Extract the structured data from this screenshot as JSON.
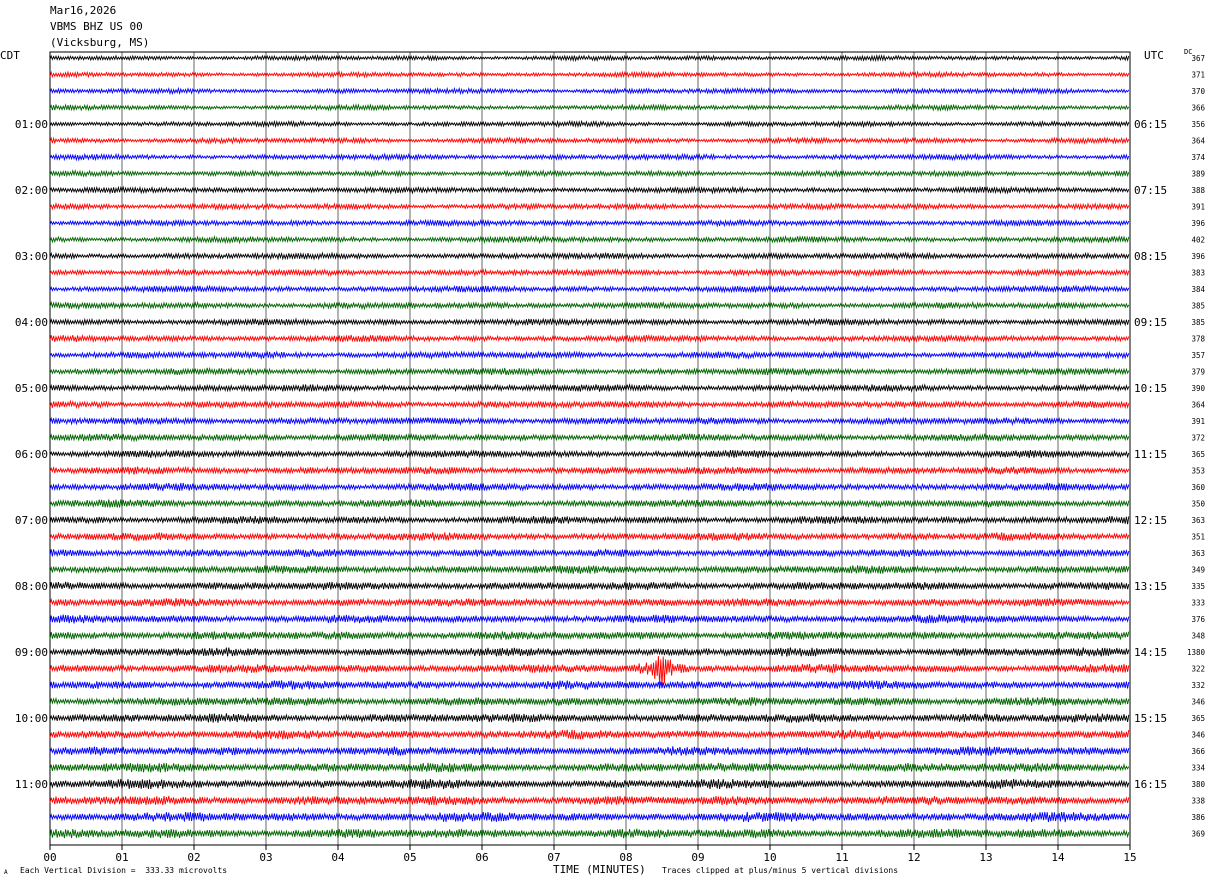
{
  "header": {
    "date": "Mar16,2026",
    "station": "VBMS BHZ US 00",
    "location": "(Vicksburg, MS)"
  },
  "left_tz": "CDT",
  "right_tz": "UTC",
  "dc_label": "DC",
  "footer": {
    "left": "Each Vertical Division =  333.33 microvolts",
    "right": "Traces clipped at plus/minus 5 vertical divisions",
    "corner": "A"
  },
  "chart_data": {
    "type": "line",
    "xlabel": "TIME (MINUTES)",
    "xlim": [
      0,
      15
    ],
    "x_ticks": [
      "00",
      "01",
      "02",
      "03",
      "04",
      "05",
      "06",
      "07",
      "08",
      "09",
      "10",
      "11",
      "12",
      "13",
      "14",
      "15"
    ],
    "trace_count": 48,
    "trace_colors": [
      "#000000",
      "#ff0000",
      "#0000ff",
      "#006400"
    ],
    "left_hour_labels": [
      "01:00",
      "02:00",
      "03:00",
      "04:00",
      "05:00",
      "06:00",
      "07:00",
      "08:00",
      "09:00",
      "10:00",
      "11:00"
    ],
    "right_hour_labels": [
      "06:15",
      "07:15",
      "08:15",
      "09:15",
      "10:15",
      "11:15",
      "12:15",
      "13:15",
      "14:15",
      "15:15",
      "16:15"
    ],
    "dc_values": [
      "367",
      "371",
      "370",
      "366",
      "356",
      "364",
      "374",
      "389",
      "388",
      "391",
      "396",
      "402",
      "396",
      "383",
      "384",
      "385",
      "385",
      "378",
      "357",
      "379",
      "390",
      "364",
      "391",
      "372",
      "365",
      "353",
      "360",
      "350",
      "363",
      "351",
      "363",
      "349",
      "335",
      "333",
      "376",
      "348",
      "1380",
      "322",
      "332",
      "346",
      "365",
      "346",
      "366",
      "334",
      "380",
      "338",
      "386",
      "369"
    ],
    "event": {
      "trace_index": 37,
      "minute": 8.5,
      "note": ""
    }
  }
}
